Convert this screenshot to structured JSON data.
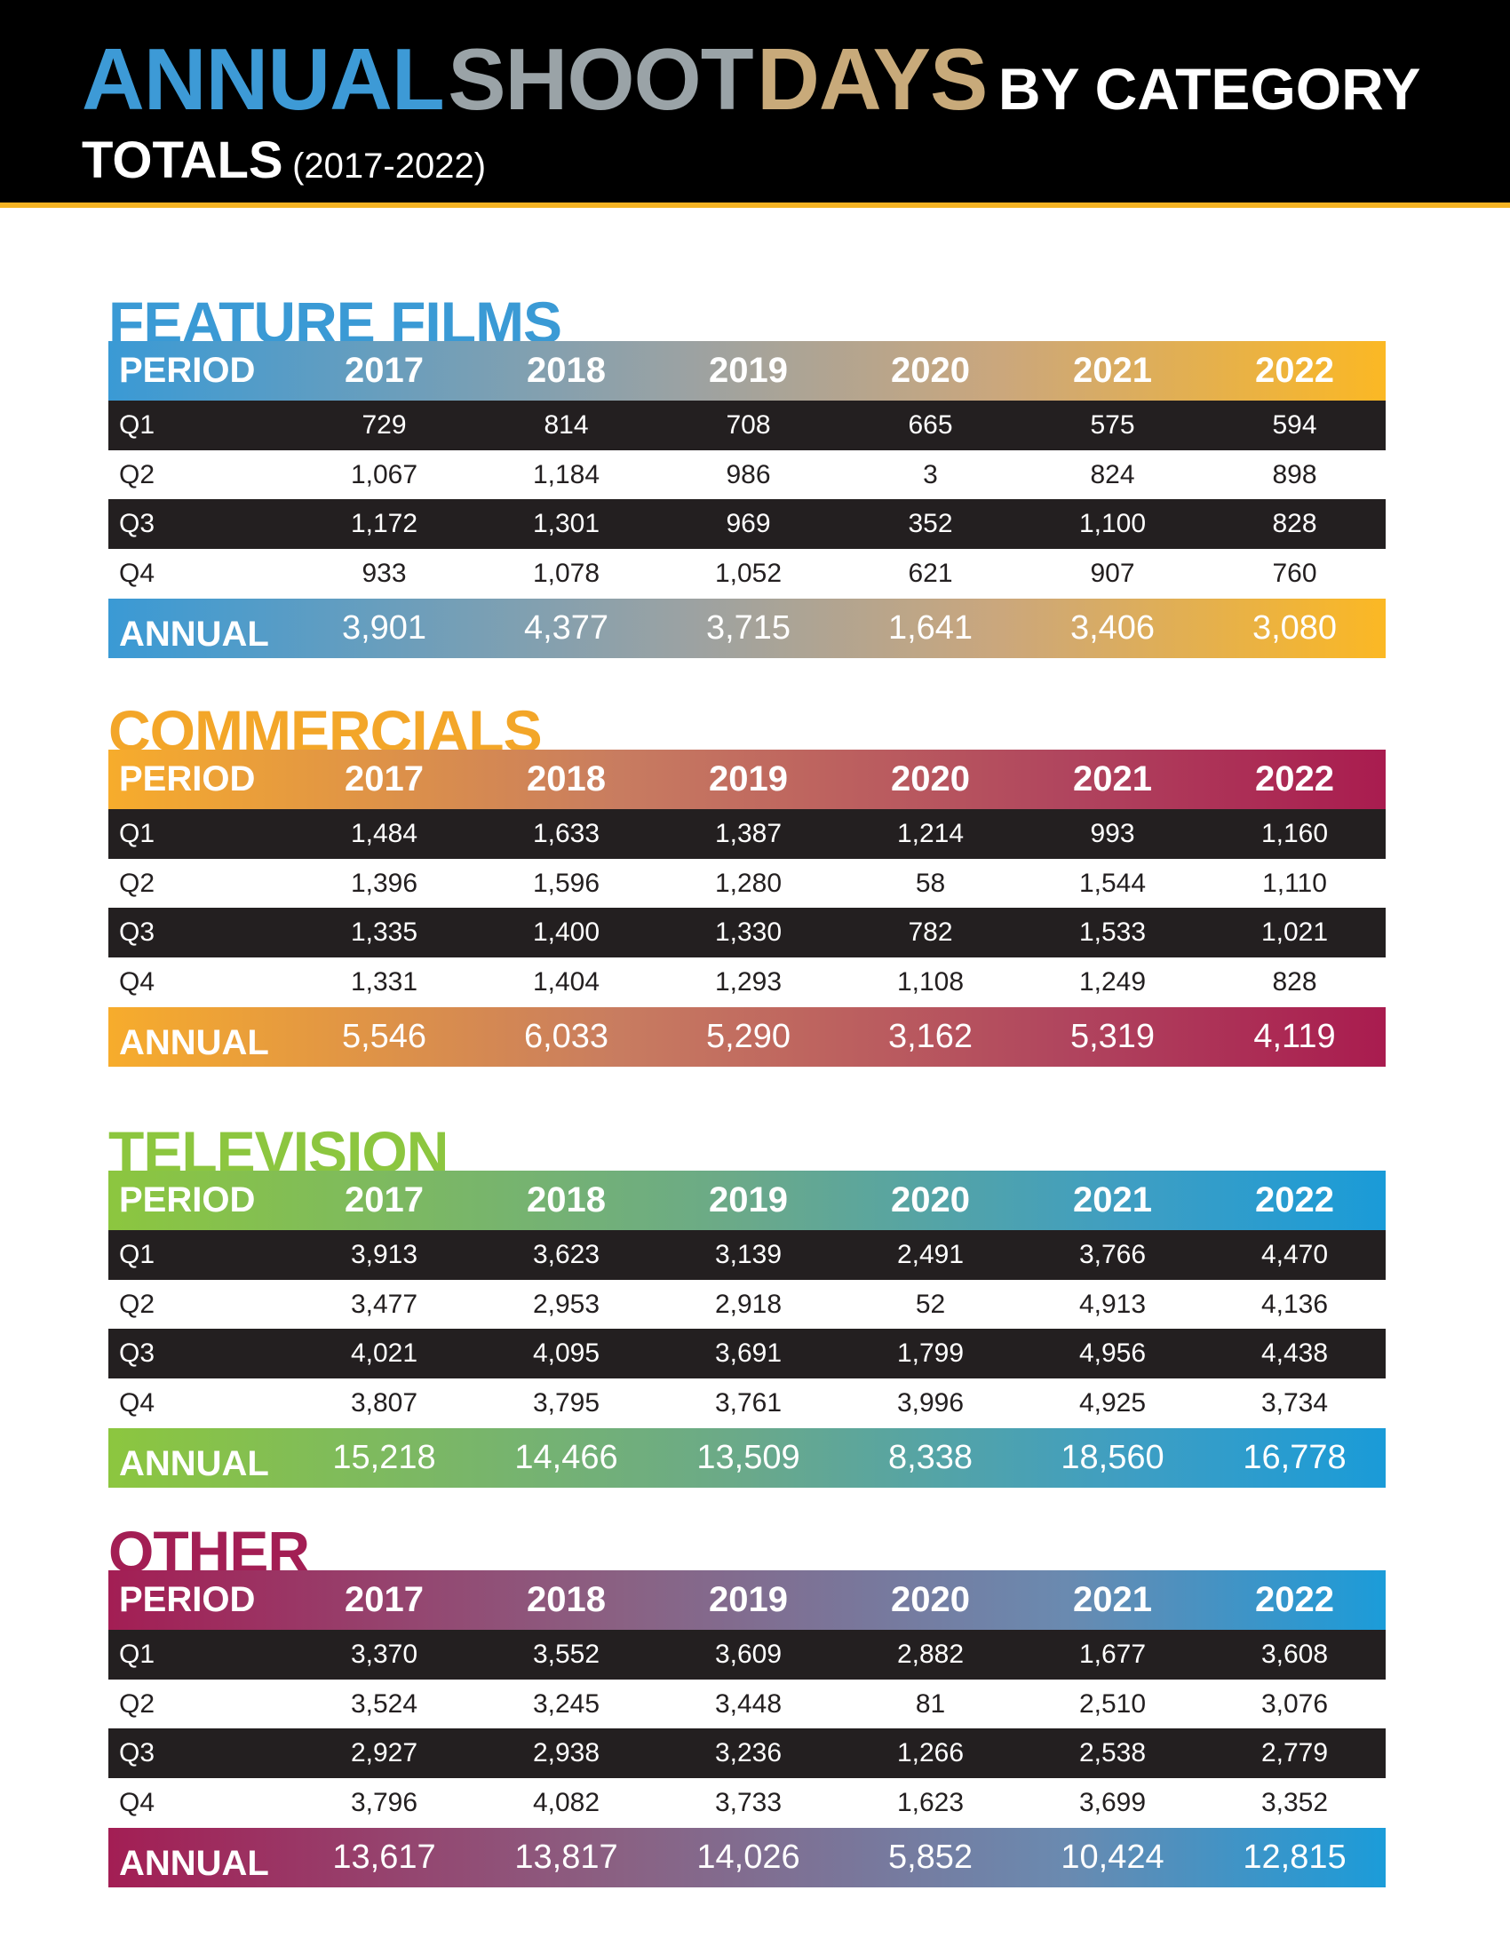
{
  "header": {
    "title_part1": "ANNUAL",
    "title_part2": "SHOOT",
    "title_part3": "DAYS",
    "title_part4": "BY CATEGORY",
    "subtitle": "TOTALS",
    "subtitle_range": "(2017-2022)"
  },
  "columns": [
    "PERIOD",
    "2017",
    "2018",
    "2019",
    "2020",
    "2021",
    "2022"
  ],
  "colors": {
    "feature_films": "#3a9ad5",
    "commercials": "#f7ac2c",
    "television": "#8cc63f",
    "other": "#a31e54",
    "accent_bar": "#f5b323"
  },
  "sections": [
    {
      "title": "FEATURE FILMS",
      "rows": [
        {
          "label": "Q1",
          "values": [
            "729",
            "814",
            "708",
            "665",
            "575",
            "594"
          ]
        },
        {
          "label": "Q2",
          "values": [
            "1,067",
            "1,184",
            "986",
            "3",
            "824",
            "898"
          ]
        },
        {
          "label": "Q3",
          "values": [
            "1,172",
            "1,301",
            "969",
            "352",
            "1,100",
            "828"
          ]
        },
        {
          "label": "Q4",
          "values": [
            "933",
            "1,078",
            "1,052",
            "621",
            "907",
            "760"
          ]
        }
      ],
      "annual": {
        "label": "ANNUAL",
        "values": [
          "3,901",
          "4,377",
          "3,715",
          "1,641",
          "3,406",
          "3,080"
        ]
      }
    },
    {
      "title": "COMMERCIALS",
      "rows": [
        {
          "label": "Q1",
          "values": [
            "1,484",
            "1,633",
            "1,387",
            "1,214",
            "993",
            "1,160"
          ]
        },
        {
          "label": "Q2",
          "values": [
            "1,396",
            "1,596",
            "1,280",
            "58",
            "1,544",
            "1,110"
          ]
        },
        {
          "label": "Q3",
          "values": [
            "1,335",
            "1,400",
            "1,330",
            "782",
            "1,533",
            "1,021"
          ]
        },
        {
          "label": "Q4",
          "values": [
            "1,331",
            "1,404",
            "1,293",
            "1,108",
            "1,249",
            "828"
          ]
        }
      ],
      "annual": {
        "label": "ANNUAL",
        "values": [
          "5,546",
          "6,033",
          "5,290",
          "3,162",
          "5,319",
          "4,119"
        ]
      }
    },
    {
      "title": "TELEVISION",
      "rows": [
        {
          "label": "Q1",
          "values": [
            "3,913",
            "3,623",
            "3,139",
            "2,491",
            "3,766",
            "4,470"
          ]
        },
        {
          "label": "Q2",
          "values": [
            "3,477",
            "2,953",
            "2,918",
            "52",
            "4,913",
            "4,136"
          ]
        },
        {
          "label": "Q3",
          "values": [
            "4,021",
            "4,095",
            "3,691",
            "1,799",
            "4,956",
            "4,438"
          ]
        },
        {
          "label": "Q4",
          "values": [
            "3,807",
            "3,795",
            "3,761",
            "3,996",
            "4,925",
            "3,734"
          ]
        }
      ],
      "annual": {
        "label": "ANNUAL",
        "values": [
          "15,218",
          "14,466",
          "13,509",
          "8,338",
          "18,560",
          "16,778"
        ]
      }
    },
    {
      "title": "OTHER",
      "rows": [
        {
          "label": "Q1",
          "values": [
            "3,370",
            "3,552",
            "3,609",
            "2,882",
            "1,677",
            "3,608"
          ]
        },
        {
          "label": "Q2",
          "values": [
            "3,524",
            "3,245",
            "3,448",
            "81",
            "2,510",
            "3,076"
          ]
        },
        {
          "label": "Q3",
          "values": [
            "2,927",
            "2,938",
            "3,236",
            "1,266",
            "2,538",
            "2,779"
          ]
        },
        {
          "label": "Q4",
          "values": [
            "3,796",
            "4,082",
            "3,733",
            "1,623",
            "3,699",
            "3,352"
          ]
        }
      ],
      "annual": {
        "label": "ANNUAL",
        "values": [
          "13,617",
          "13,817",
          "14,026",
          "5,852",
          "10,424",
          "12,815"
        ]
      }
    }
  ]
}
